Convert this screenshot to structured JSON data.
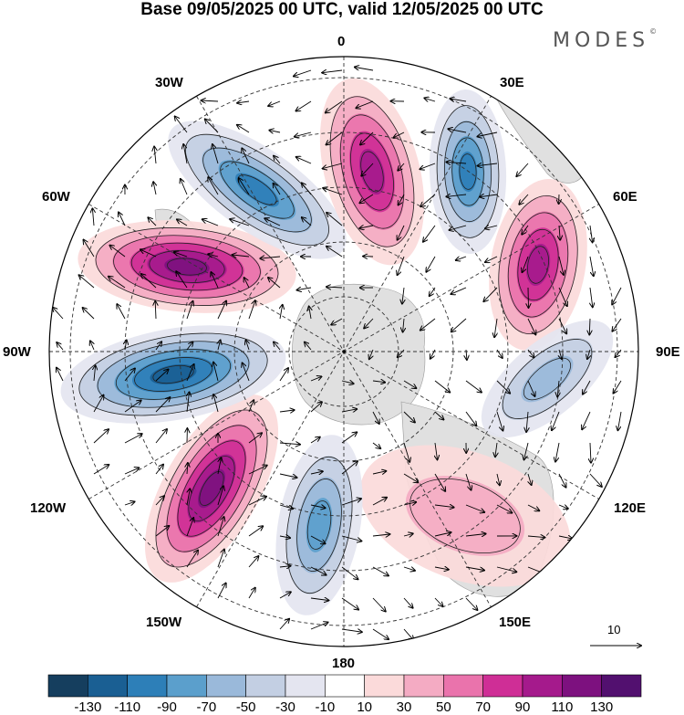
{
  "header": {
    "title": "Base 09/05/2025 00 UTC, valid 12/05/2025 00 UTC",
    "brand": "MODES",
    "brand_mark": "©"
  },
  "map": {
    "projection": "south-polar-stereographic",
    "longitude_labels": {
      "lon_0": "0",
      "lon_30e": "30E",
      "lon_60e": "60E",
      "lon_90e": "90E",
      "lon_120e": "120E",
      "lon_150e": "150E",
      "lon_180": "180",
      "lon_150w": "150W",
      "lon_120w": "120W",
      "lon_90w": "90W",
      "lon_60w": "60W",
      "lon_30w": "30W"
    },
    "vector_reference": "10",
    "colors": {
      "land": "#e0e0e0",
      "negative_extreme": "#12466b",
      "positive_extreme": "#5e1580"
    }
  },
  "colorbar": {
    "labels": [
      "-130",
      "-110",
      "-90",
      "-70",
      "-50",
      "-30",
      "-10",
      "10",
      "30",
      "50",
      "70",
      "90",
      "110",
      "130"
    ],
    "colors": [
      "#153e5e",
      "#1a5f93",
      "#2d7fb8",
      "#5b9fcc",
      "#9ab9da",
      "#c3cfe3",
      "#e4e5f0",
      "#ffffff",
      "#fbdada",
      "#f4abc3",
      "#ea73ac",
      "#cf2e96",
      "#a51a8c",
      "#7d117f",
      "#52106f"
    ]
  }
}
